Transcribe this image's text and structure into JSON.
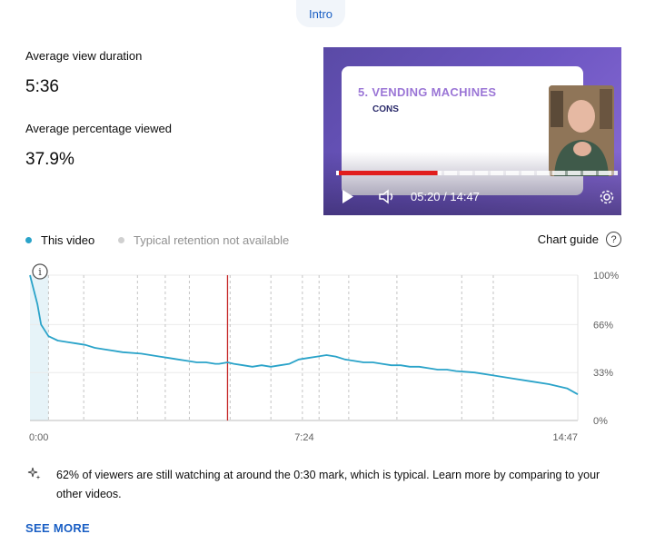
{
  "chip": {
    "label": "Intro"
  },
  "metrics": {
    "avg_duration_label": "Average view duration",
    "avg_duration_value": "5:36",
    "avg_percent_label": "Average percentage viewed",
    "avg_percent_value": "37.9%"
  },
  "video": {
    "slide_title": "5. VENDING MACHINES",
    "slide_subtitle": "CONS",
    "time": "05:20 / 14:47",
    "played_fraction": 0.36,
    "icons": [
      "play-icon",
      "volume-icon",
      "settings-gear-icon"
    ]
  },
  "legend": {
    "this_video": "This video",
    "typical": "Typical retention not available",
    "this_video_color": "#2aa3c9",
    "typical_color": "#d0d0d0",
    "chart_guide": "Chart guide",
    "help_glyph": "?"
  },
  "chart_data": {
    "type": "line",
    "series": [
      {
        "name": "This video",
        "x": [
          0,
          0.1,
          0.2,
          0.3,
          0.4,
          0.5,
          0.75,
          1,
          1.25,
          1.5,
          1.75,
          2,
          2.5,
          3,
          3.25,
          3.5,
          3.75,
          4,
          4.25,
          4.5,
          4.75,
          5,
          5.1,
          5.33,
          5.5,
          5.75,
          6,
          6.25,
          6.5,
          6.75,
          7,
          7.25,
          7.5,
          7.75,
          8,
          8.25,
          8.5,
          8.75,
          9,
          9.25,
          9.5,
          9.75,
          10,
          10.25,
          10.5,
          10.75,
          11,
          11.25,
          11.5,
          12,
          12.5,
          13,
          13.5,
          14,
          14.5,
          14.78
        ],
        "values": [
          100,
          90,
          80,
          66,
          62,
          58,
          55,
          54,
          53,
          52,
          50,
          49,
          47,
          46,
          45,
          44,
          43,
          42,
          41,
          40,
          40,
          39,
          39,
          40,
          39,
          38,
          37,
          38,
          37,
          38,
          39,
          42,
          43,
          44,
          45,
          44,
          42,
          41,
          40,
          40,
          39,
          38,
          38,
          37,
          37,
          36,
          35,
          35,
          34,
          33,
          31,
          29,
          27,
          25,
          22,
          18
        ]
      }
    ],
    "xlim": [
      0,
      14.78
    ],
    "ylim": [
      0,
      100
    ],
    "x_tick_labels": [
      "0:00",
      "7:24",
      "14:47"
    ],
    "x_tick_values": [
      0,
      7.4,
      14.78
    ],
    "y_tick_labels": [
      "100%",
      "66%",
      "33%",
      "0%"
    ],
    "y_tick_values": [
      100,
      66,
      33,
      0
    ],
    "chapter_markers": [
      0.5,
      1.45,
      2.9,
      3.65,
      4.3,
      5.4,
      6.5,
      7.35,
      7.8,
      8.6,
      9.9,
      11.65,
      12.5
    ],
    "current_position": 5.33,
    "intro_shaded_until": 0.5,
    "line_color": "#2aa3c9",
    "marker_color": "#c62828",
    "info_glyph": "i"
  },
  "insight": {
    "icon": "sparkle-icon",
    "text": "62% of viewers are still watching at around the 0:30 mark, which is typical. Learn more by comparing to your other videos."
  },
  "see_more": "SEE MORE"
}
